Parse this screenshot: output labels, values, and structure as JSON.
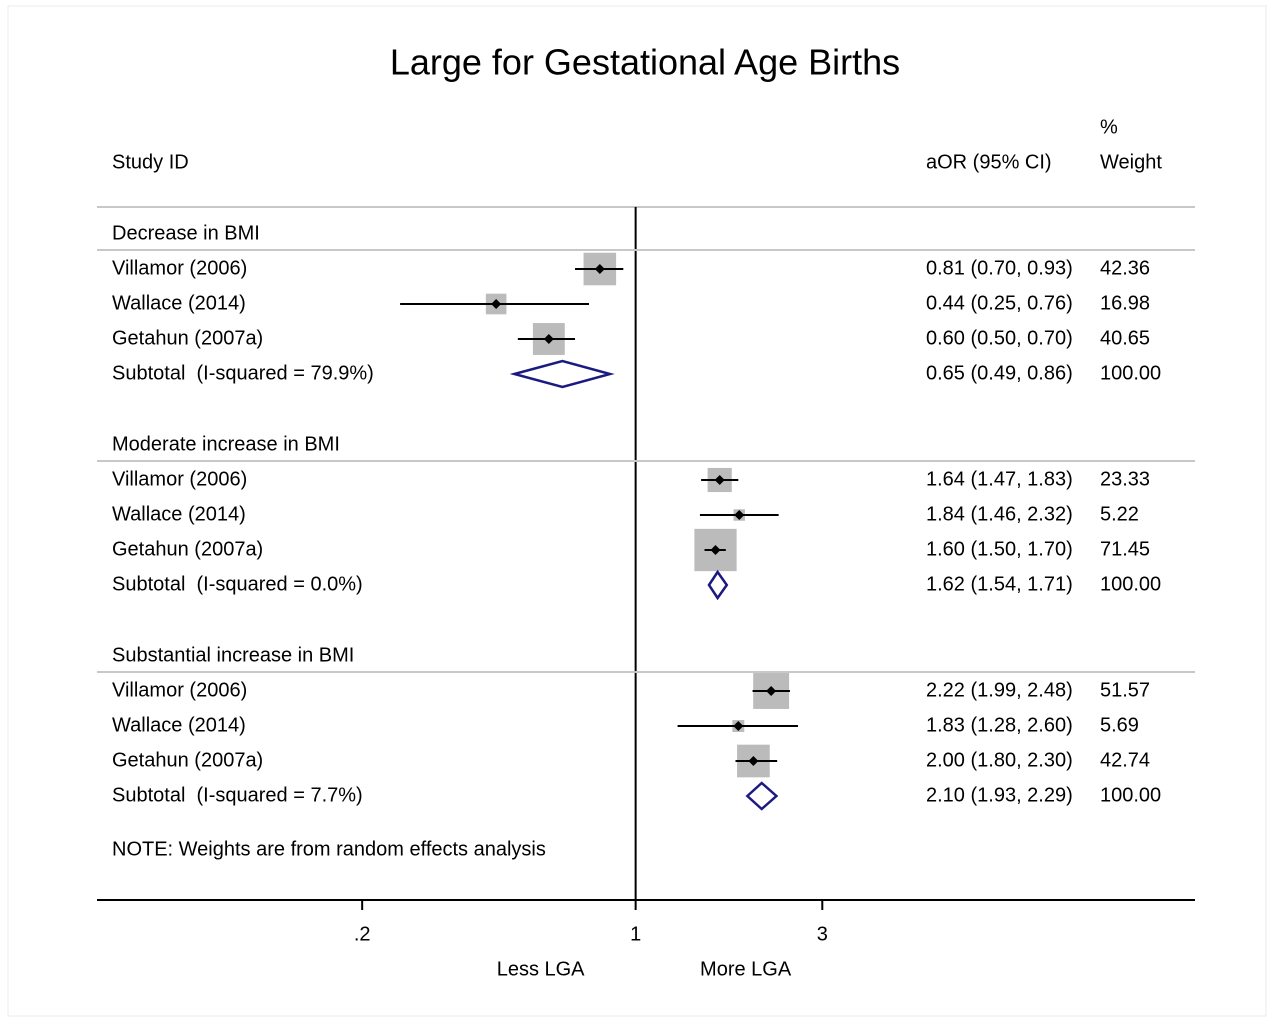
{
  "chart_data": {
    "type": "forest",
    "title": "Large for Gestational Age Births",
    "headers": {
      "study": "Study ID",
      "ci": "aOR (95% CI)",
      "weight_top": "%",
      "weight": "Weight"
    },
    "groups": [
      {
        "name": "Decrease in BMI",
        "studies": [
          {
            "study": "Villamor (2006)",
            "or": 0.81,
            "lo": 0.7,
            "hi": 0.93,
            "label": "0.81 (0.70, 0.93)",
            "weight": 42.36,
            "weight_label": "42.36"
          },
          {
            "study": "Wallace (2014)",
            "or": 0.44,
            "lo": 0.25,
            "hi": 0.76,
            "label": "0.44 (0.25, 0.76)",
            "weight": 16.98,
            "weight_label": "16.98"
          },
          {
            "study": "Getahun (2007a)",
            "or": 0.6,
            "lo": 0.5,
            "hi": 0.7,
            "label": "0.60 (0.50, 0.70)",
            "weight": 40.65,
            "weight_label": "40.65"
          }
        ],
        "subtotal": {
          "study": "Subtotal  (I-squared = 79.9%)",
          "or": 0.65,
          "lo": 0.49,
          "hi": 0.86,
          "label": "0.65 (0.49, 0.86)",
          "weight": 100,
          "weight_label": "100.00"
        }
      },
      {
        "name": "Moderate increase in BMI",
        "studies": [
          {
            "study": "Villamor (2006)",
            "or": 1.64,
            "lo": 1.47,
            "hi": 1.83,
            "label": "1.64 (1.47, 1.83)",
            "weight": 23.33,
            "weight_label": "23.33"
          },
          {
            "study": "Wallace (2014)",
            "or": 1.84,
            "lo": 1.46,
            "hi": 2.32,
            "label": "1.84 (1.46, 2.32)",
            "weight": 5.22,
            "weight_label": "5.22"
          },
          {
            "study": "Getahun (2007a)",
            "or": 1.6,
            "lo": 1.5,
            "hi": 1.7,
            "label": "1.60 (1.50, 1.70)",
            "weight": 71.45,
            "weight_label": "71.45"
          }
        ],
        "subtotal": {
          "study": "Subtotal  (I-squared = 0.0%)",
          "or": 1.62,
          "lo": 1.54,
          "hi": 1.71,
          "label": "1.62 (1.54, 1.71)",
          "weight": 100,
          "weight_label": "100.00"
        }
      },
      {
        "name": "Substantial increase in BMI",
        "studies": [
          {
            "study": "Villamor (2006)",
            "or": 2.22,
            "lo": 1.99,
            "hi": 2.48,
            "label": "2.22 (1.99, 2.48)",
            "weight": 51.57,
            "weight_label": "51.57"
          },
          {
            "study": "Wallace (2014)",
            "or": 1.83,
            "lo": 1.28,
            "hi": 2.6,
            "label": "1.83 (1.28, 2.60)",
            "weight": 5.69,
            "weight_label": "5.69"
          },
          {
            "study": "Getahun (2007a)",
            "or": 2.0,
            "lo": 1.8,
            "hi": 2.3,
            "label": "2.00 (1.80, 2.30)",
            "weight": 42.74,
            "weight_label": "42.74"
          }
        ],
        "subtotal": {
          "study": "Subtotal  (I-squared = 7.7%)",
          "or": 2.1,
          "lo": 1.93,
          "hi": 2.29,
          "label": "2.10 (1.93, 2.29)",
          "weight": 100,
          "weight_label": "100.00"
        }
      }
    ],
    "note": "NOTE: Weights are from random effects analysis",
    "direction_labels": [
      "Less LGA",
      "More LGA"
    ],
    "log_scale": true,
    "xlim": [
      0.042,
      26.9
    ],
    "xticks": [
      {
        "value": 0.2,
        "label": ".2"
      },
      1,
      3
    ],
    "null_line": 1,
    "box_color": "#bbbbbb",
    "diamond_color": "#1a1a80"
  }
}
